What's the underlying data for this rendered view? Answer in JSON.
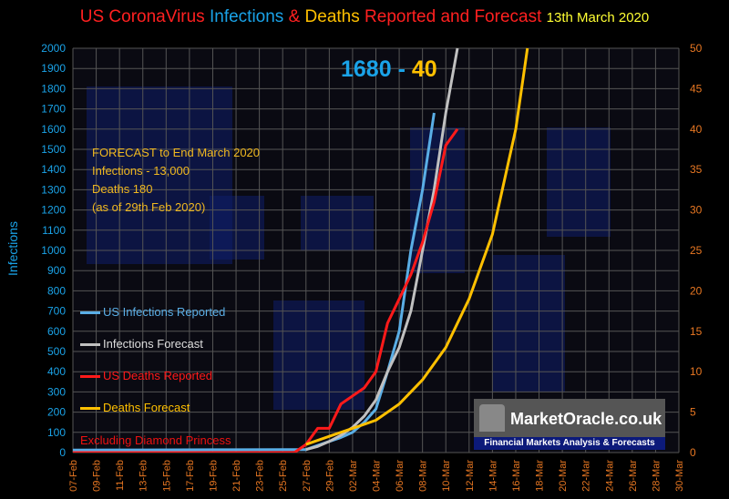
{
  "title": {
    "part1": "US CoronaVirus",
    "part2": "Infections",
    "part3": "&",
    "part4": "Deaths",
    "part5": "Reported and Forecast",
    "date": "13th  March 2020"
  },
  "counter": {
    "infections": "1680",
    "separator": "-",
    "deaths": "40"
  },
  "forecast_note": [
    "FORECAST to End March 2020",
    "Infections - 13,000",
    "Deaths 180",
    "(as of  29th Feb  2020)"
  ],
  "excluding_note": "Excluding Diamond Princess",
  "watermark": {
    "title": "MarketOracle.co.uk",
    "subtitle": "Financial Markets Analysis & Forecasts"
  },
  "colors": {
    "infections_reported": "#5aaee6",
    "infections_forecast": "#c0c0c0",
    "deaths_reported": "#ff1a1a",
    "deaths_forecast": "#ffc000",
    "title_red": "#ff2020",
    "title_blue": "#1aa3e8",
    "title_yellow": "#ffc000",
    "date_yellow": "#ffff33",
    "left_axis": "#1aa3e8",
    "right_axis": "#e87722",
    "grid": "#555555"
  },
  "chart_data": {
    "type": "line",
    "ylabel": "Infections",
    "ylim": [
      0,
      2000
    ],
    "y2lim": [
      0,
      50
    ],
    "yticks": [
      0,
      100,
      200,
      300,
      400,
      500,
      600,
      700,
      800,
      900,
      1000,
      1100,
      1200,
      1300,
      1400,
      1500,
      1600,
      1700,
      1800,
      1900,
      2000
    ],
    "y2ticks": [
      0,
      5,
      10,
      15,
      20,
      25,
      30,
      35,
      40,
      45,
      50
    ],
    "xticks": [
      "07-Feb",
      "09-Feb",
      "11-Feb",
      "13-Feb",
      "15-Feb",
      "17-Feb",
      "19-Feb",
      "21-Feb",
      "23-Feb",
      "25-Feb",
      "27-Feb",
      "29-Feb",
      "02-Mar",
      "04-Mar",
      "06-Mar",
      "08-Mar",
      "10-Mar",
      "12-Mar",
      "14-Mar",
      "16-Mar",
      "18-Mar",
      "20-Mar",
      "22-Mar",
      "24-Mar",
      "26-Mar",
      "28-Mar",
      "30-Mar"
    ],
    "grid": true,
    "legend_position": "left",
    "series": [
      {
        "name": "US Infections Reported",
        "axis": "left",
        "color_key": "infections_reported",
        "points": [
          [
            0,
            12
          ],
          [
            6,
            13
          ],
          [
            12,
            14
          ],
          [
            18,
            15
          ],
          [
            20,
            15
          ],
          [
            21,
            35
          ],
          [
            22,
            55
          ],
          [
            23,
            75
          ],
          [
            24,
            100
          ],
          [
            25,
            150
          ],
          [
            26,
            215
          ],
          [
            27,
            400
          ],
          [
            28,
            600
          ],
          [
            29,
            1000
          ],
          [
            30,
            1300
          ],
          [
            31,
            1680
          ]
        ]
      },
      {
        "name": "Infections Forecast",
        "axis": "left",
        "color_key": "infections_forecast",
        "points": [
          [
            20,
            15
          ],
          [
            21,
            30
          ],
          [
            22,
            55
          ],
          [
            23,
            85
          ],
          [
            24,
            125
          ],
          [
            25,
            180
          ],
          [
            26,
            260
          ],
          [
            27,
            400
          ],
          [
            28,
            520
          ],
          [
            29,
            700
          ],
          [
            30,
            1000
          ],
          [
            31,
            1300
          ],
          [
            32,
            1680
          ],
          [
            33,
            2000
          ]
        ]
      },
      {
        "name": "US Deaths Reported",
        "axis": "right",
        "color_key": "deaths_reported",
        "points": [
          [
            0,
            0
          ],
          [
            18,
            0
          ],
          [
            19,
            0
          ],
          [
            20,
            1
          ],
          [
            21,
            3
          ],
          [
            22,
            3
          ],
          [
            23,
            6
          ],
          [
            24,
            7
          ],
          [
            25,
            8
          ],
          [
            26,
            10
          ],
          [
            27,
            16
          ],
          [
            28,
            19
          ],
          [
            29,
            22
          ],
          [
            30,
            26
          ],
          [
            31,
            31
          ],
          [
            32,
            38
          ],
          [
            33,
            40
          ]
        ]
      },
      {
        "name": "Deaths Forecast",
        "axis": "right",
        "color_key": "deaths_forecast",
        "points": [
          [
            20,
            1
          ],
          [
            22,
            2
          ],
          [
            24,
            3
          ],
          [
            26,
            4
          ],
          [
            28,
            6
          ],
          [
            30,
            9
          ],
          [
            32,
            13
          ],
          [
            34,
            19
          ],
          [
            36,
            27
          ],
          [
            38,
            40
          ],
          [
            39,
            50
          ]
        ]
      }
    ]
  }
}
